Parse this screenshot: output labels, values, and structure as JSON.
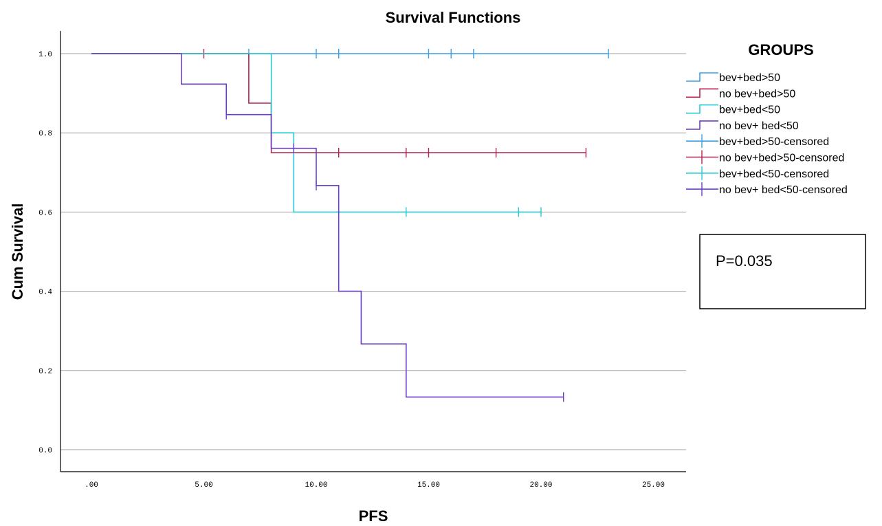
{
  "chart_data": {
    "type": "line",
    "title": "Survival Functions",
    "xlabel": "PFS",
    "ylabel": "Cum Survival",
    "xlim": [
      -1,
      26
    ],
    "ylim": [
      -0.05,
      1.06
    ],
    "xticks": [
      0,
      5,
      10,
      15,
      20,
      25
    ],
    "xtick_labels": [
      ".00",
      "5.00",
      "10.00",
      "15.00",
      "20.00",
      "25.00"
    ],
    "yticks": [
      0,
      0.2,
      0.4,
      0.6,
      0.8,
      1.0
    ],
    "ytick_labels": [
      "0.0",
      "0.2",
      "0.4",
      "0.6",
      "0.8",
      "1.0"
    ],
    "grid": "horizontal",
    "legend_title": "GROUPS",
    "legend_position": "right",
    "annotation": "P=0.035",
    "series": [
      {
        "name": "bev+bed>50",
        "color": "#3a9ee4",
        "steps": [
          [
            0,
            1.0
          ],
          [
            23,
            1.0
          ]
        ],
        "censored_name": "bev+bed>50-censored",
        "censored": [
          [
            7,
            1.0
          ],
          [
            10,
            1.0
          ],
          [
            11,
            1.0
          ],
          [
            15,
            1.0
          ],
          [
            16,
            1.0
          ],
          [
            17,
            1.0
          ],
          [
            23,
            1.0
          ]
        ]
      },
      {
        "name": "no bev+bed>50",
        "color": "#b3234f",
        "steps": [
          [
            0,
            1.0
          ],
          [
            7,
            0.875
          ],
          [
            8,
            0.75
          ],
          [
            22,
            0.75
          ]
        ],
        "censored_name": "no bev+bed>50-censored",
        "censored": [
          [
            5,
            1.0
          ],
          [
            11,
            0.75
          ],
          [
            14,
            0.75
          ],
          [
            15,
            0.75
          ],
          [
            18,
            0.75
          ],
          [
            22,
            0.75
          ]
        ]
      },
      {
        "name": "bev+bed<50",
        "color": "#26c9d1",
        "steps": [
          [
            0,
            1.0
          ],
          [
            8,
            0.8
          ],
          [
            9,
            0.6
          ],
          [
            20,
            0.6
          ]
        ],
        "censored_name": "bev+bed<50-censored",
        "censored": [
          [
            14,
            0.6
          ],
          [
            19,
            0.6
          ],
          [
            20,
            0.6
          ]
        ]
      },
      {
        "name": "no bev+ bed<50",
        "color": "#6a3fc4",
        "steps": [
          [
            0,
            1.0
          ],
          [
            4,
            0.923
          ],
          [
            6,
            0.846
          ],
          [
            8,
            0.761
          ],
          [
            10,
            0.667
          ],
          [
            11,
            0.4
          ],
          [
            12,
            0.267
          ],
          [
            14,
            0.133
          ],
          [
            21,
            0.133
          ]
        ],
        "censored_name": "no bev+ bed<50-censored",
        "censored": [
          [
            6,
            0.846
          ],
          [
            9,
            0.761
          ],
          [
            10,
            0.667
          ],
          [
            21,
            0.133
          ]
        ]
      }
    ]
  }
}
